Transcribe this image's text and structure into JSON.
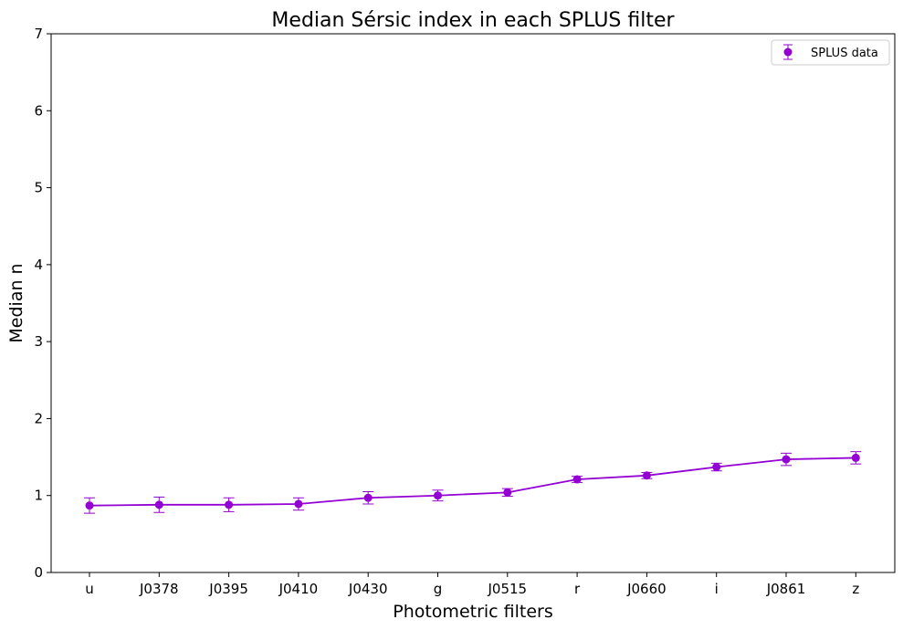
{
  "chart_data": {
    "type": "line",
    "title": "Median Sérsic index in each SPLUS filter",
    "xlabel": "Photometric filters",
    "ylabel": "Median n",
    "categories": [
      "u",
      "J0378",
      "J0395",
      "J0410",
      "J0430",
      "g",
      "J0515",
      "r",
      "J0660",
      "i",
      "J0861",
      "z"
    ],
    "ylim": [
      0,
      7
    ],
    "yticks": [
      0,
      1,
      2,
      3,
      4,
      5,
      6,
      7
    ],
    "grid": false,
    "legend_position": "top-right",
    "series": [
      {
        "name": "SPLUS data",
        "values": [
          0.87,
          0.88,
          0.88,
          0.89,
          0.97,
          1.0,
          1.04,
          1.21,
          1.26,
          1.37,
          1.47,
          1.49
        ],
        "errors": [
          0.1,
          0.1,
          0.09,
          0.08,
          0.08,
          0.07,
          0.05,
          0.04,
          0.04,
          0.05,
          0.08,
          0.08
        ],
        "color": "#9400d3"
      }
    ]
  }
}
